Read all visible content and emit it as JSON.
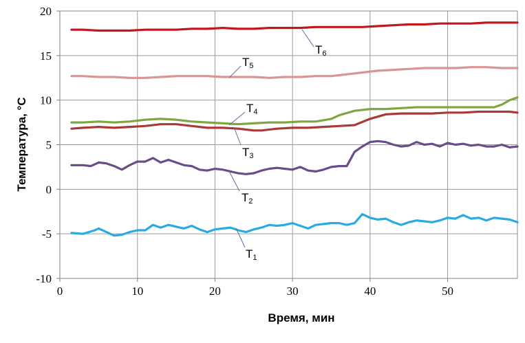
{
  "chart_data": {
    "type": "line",
    "title": "",
    "xlabel": "Время, мин",
    "ylabel": "Температура, °С",
    "xlim": [
      0,
      59
    ],
    "ylim": [
      -10,
      20
    ],
    "xticks": [
      0,
      10,
      20,
      30,
      40,
      50
    ],
    "yticks": [
      20,
      15,
      10,
      5,
      0,
      -5,
      -10
    ],
    "xtick_labels": [
      "0",
      "10",
      "20",
      "30",
      "40",
      "50"
    ],
    "ytick_labels": [
      "20",
      "15",
      "10",
      "5",
      "0",
      "-5",
      "-10"
    ],
    "grid": true,
    "legend": "none",
    "colors": {
      "T1": "#29ABE2",
      "T2": "#6B4C8A",
      "T3": "#A93A3A",
      "T4": "#7FA641",
      "T5": "#D99593",
      "T6": "#C0181E"
    },
    "series": [
      {
        "name": "T1",
        "label_main": "T",
        "label_sub": "1",
        "x": [
          1.5,
          3,
          4.5,
          5,
          6,
          7,
          8,
          9,
          10,
          11,
          12,
          13,
          14,
          15,
          16,
          17,
          18,
          19,
          20,
          21,
          22,
          23,
          24,
          25,
          26,
          27,
          28,
          29,
          30,
          31,
          32,
          33,
          34,
          35,
          36,
          37,
          38,
          39,
          40,
          41,
          42,
          43,
          44,
          45,
          46,
          47,
          48,
          49,
          50,
          51,
          52,
          53,
          54,
          55,
          56,
          57,
          58,
          59
        ],
        "values": [
          -4.9,
          -5.0,
          -4.6,
          -4.4,
          -4.8,
          -5.2,
          -5.1,
          -4.8,
          -4.6,
          -4.6,
          -4.0,
          -4.3,
          -4.0,
          -4.2,
          -4.4,
          -4.1,
          -4.5,
          -4.8,
          -4.5,
          -4.4,
          -4.3,
          -4.6,
          -4.8,
          -4.5,
          -4.3,
          -4.0,
          -4.1,
          -4.0,
          -3.8,
          -4.1,
          -4.4,
          -4.0,
          -3.9,
          -3.8,
          -3.8,
          -4.0,
          -3.8,
          -2.8,
          -3.2,
          -3.4,
          -3.3,
          -3.7,
          -4.0,
          -3.7,
          -3.5,
          -3.6,
          -3.7,
          -3.5,
          -3.2,
          -3.3,
          -2.9,
          -3.3,
          -3.2,
          -3.5,
          -3.2,
          -3.3,
          -3.4,
          -3.7
        ]
      },
      {
        "name": "T2",
        "label_main": "T",
        "label_sub": "2",
        "x": [
          1.5,
          3,
          4,
          5,
          6,
          7,
          8,
          9,
          10,
          11,
          12,
          13,
          14,
          15,
          16,
          17,
          18,
          19,
          20,
          21,
          22,
          23,
          24,
          25,
          26,
          27,
          28,
          29,
          30,
          31,
          32,
          33,
          34,
          35,
          36,
          37,
          37.5,
          38,
          39,
          40,
          41,
          42,
          43,
          44,
          45,
          46,
          47,
          48,
          49,
          50,
          51,
          52,
          53,
          54,
          55,
          56,
          57,
          58,
          59
        ],
        "values": [
          2.7,
          2.7,
          2.6,
          3.0,
          2.9,
          2.6,
          2.2,
          2.7,
          3.1,
          3.1,
          3.5,
          3.0,
          3.3,
          3.0,
          2.7,
          2.6,
          2.2,
          2.1,
          2.3,
          2.2,
          2.0,
          1.8,
          1.7,
          1.8,
          2.1,
          2.3,
          2.4,
          2.3,
          2.2,
          2.5,
          2.1,
          2.0,
          2.2,
          2.5,
          2.6,
          2.6,
          3.4,
          4.2,
          4.8,
          5.3,
          5.4,
          5.3,
          5.0,
          4.8,
          4.9,
          5.3,
          5.0,
          5.1,
          4.8,
          5.2,
          5.0,
          5.1,
          4.9,
          5.0,
          4.8,
          4.8,
          5.0,
          4.7,
          4.8
        ]
      },
      {
        "name": "T3",
        "label_main": "T",
        "label_sub": "3",
        "x": [
          1.5,
          3,
          5,
          7,
          9,
          11,
          13,
          15,
          17,
          19,
          21,
          23,
          24,
          25,
          26,
          28,
          30,
          32,
          34,
          36,
          38,
          40,
          42,
          44,
          46,
          48,
          50,
          52,
          54,
          56,
          58,
          59
        ],
        "values": [
          6.8,
          6.9,
          7.0,
          6.9,
          7.0,
          7.1,
          7.3,
          7.3,
          7.1,
          6.9,
          6.9,
          6.8,
          6.7,
          6.6,
          6.6,
          6.8,
          6.9,
          6.9,
          7.0,
          7.1,
          7.2,
          7.9,
          8.4,
          8.5,
          8.5,
          8.5,
          8.6,
          8.6,
          8.7,
          8.7,
          8.7,
          8.6
        ]
      },
      {
        "name": "T4",
        "label_main": "T",
        "label_sub": "4",
        "x": [
          1.5,
          3,
          5,
          7,
          9,
          11,
          13,
          15,
          17,
          19,
          21,
          23,
          25,
          27,
          29,
          31,
          33,
          35,
          36,
          38,
          40,
          42,
          44,
          46,
          48,
          50,
          52,
          54,
          56,
          57,
          58,
          59
        ],
        "values": [
          7.5,
          7.5,
          7.6,
          7.5,
          7.6,
          7.8,
          7.9,
          7.8,
          7.6,
          7.5,
          7.4,
          7.3,
          7.4,
          7.5,
          7.5,
          7.6,
          7.6,
          7.9,
          8.3,
          8.8,
          9.0,
          9.0,
          9.1,
          9.2,
          9.2,
          9.2,
          9.2,
          9.2,
          9.2,
          9.5,
          10.0,
          10.3
        ]
      },
      {
        "name": "T5",
        "label_main": "T",
        "label_sub": "5",
        "x": [
          1.5,
          3,
          5,
          7,
          9,
          11,
          13,
          15,
          17,
          19,
          21,
          23,
          25,
          27,
          29,
          31,
          33,
          35,
          37,
          39,
          41,
          43,
          45,
          47,
          49,
          51,
          53,
          55,
          57,
          59
        ],
        "values": [
          12.7,
          12.7,
          12.6,
          12.6,
          12.5,
          12.5,
          12.6,
          12.7,
          12.7,
          12.7,
          12.6,
          12.6,
          12.6,
          12.5,
          12.6,
          12.6,
          12.7,
          12.7,
          12.9,
          13.1,
          13.3,
          13.4,
          13.5,
          13.6,
          13.6,
          13.6,
          13.7,
          13.7,
          13.6,
          13.6
        ]
      },
      {
        "name": "T6",
        "label_main": "T",
        "label_sub": "6",
        "x": [
          1.5,
          3,
          5,
          7,
          9,
          11,
          13,
          15,
          17,
          19,
          21,
          23,
          25,
          27,
          29,
          31,
          33,
          35,
          37,
          39,
          41,
          43,
          45,
          47,
          49,
          51,
          53,
          55,
          57,
          59
        ],
        "values": [
          17.9,
          17.9,
          17.8,
          17.8,
          17.8,
          17.9,
          17.9,
          17.9,
          18.0,
          18.0,
          18.1,
          18.0,
          18.0,
          18.1,
          18.1,
          18.1,
          18.2,
          18.2,
          18.2,
          18.2,
          18.3,
          18.4,
          18.5,
          18.5,
          18.6,
          18.6,
          18.6,
          18.7,
          18.7,
          18.7
        ]
      }
    ]
  }
}
